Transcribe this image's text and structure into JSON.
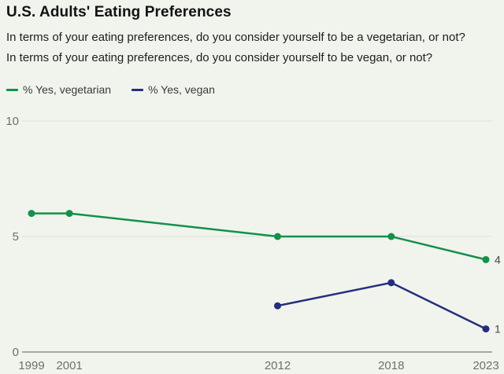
{
  "header": {
    "title": "U.S. Adults' Eating Preferences",
    "subtitle_line1": "In terms of your eating preferences, do you consider yourself to be a vegetarian, or not?",
    "subtitle_line2": "In terms of your eating preferences, do you consider yourself to be vegan, or not?"
  },
  "legend": {
    "items": [
      {
        "label": "% Yes, vegetarian",
        "color": "#13914a"
      },
      {
        "label": "% Yes, vegan",
        "color": "#252e7e"
      }
    ]
  },
  "colors": {
    "background": "#f0f4ed",
    "gridline": "#dcdfd7",
    "axis_line": "#a4a9a0",
    "tick_label": "#6e6f6a",
    "end_label": "#454545"
  },
  "chart_data": {
    "type": "line",
    "title": "U.S. Adults' Eating Preferences",
    "xlabel": "",
    "ylabel": "",
    "xlim": [
      1999,
      2023
    ],
    "ylim": [
      0,
      10
    ],
    "x_ticks": [
      1999,
      2001,
      2012,
      2018,
      2023
    ],
    "y_ticks": [
      0,
      5,
      10
    ],
    "grid": "horizontal",
    "legend_position": "top",
    "series": [
      {
        "name": "% Yes, vegetarian",
        "color": "#13914a",
        "points": [
          {
            "x": 1999,
            "y": 6
          },
          {
            "x": 2001,
            "y": 6
          },
          {
            "x": 2012,
            "y": 5
          },
          {
            "x": 2018,
            "y": 5
          },
          {
            "x": 2023,
            "y": 4
          }
        ],
        "end_label": "4"
      },
      {
        "name": "% Yes, vegan",
        "color": "#252e7e",
        "points": [
          {
            "x": 2012,
            "y": 2
          },
          {
            "x": 2018,
            "y": 3
          },
          {
            "x": 2023,
            "y": 1
          }
        ],
        "end_label": "1"
      }
    ]
  }
}
